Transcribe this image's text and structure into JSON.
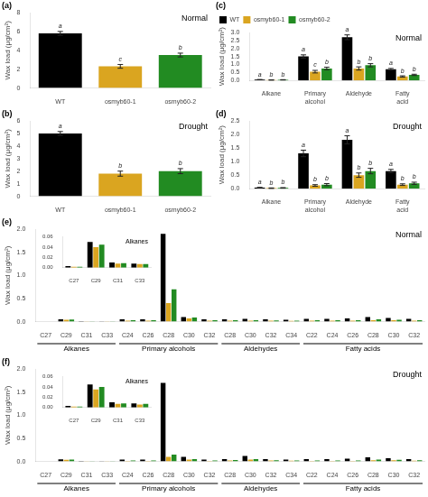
{
  "chart_data": [
    {
      "type": "bar",
      "title": "Normal",
      "annotations": [
        "(a)"
      ],
      "ylabel": "Wax load (μg/cm²)",
      "categories": [
        "WT",
        "osmyb60-1",
        "osmyb60-2"
      ],
      "values": [
        5.8,
        2.3,
        3.5
      ],
      "errors": [
        0.2,
        0.2,
        0.2
      ],
      "letters": [
        "a",
        "c",
        "b"
      ],
      "colors": [
        "#000000",
        "#DAA520",
        "#228B22"
      ],
      "ylim": [
        0,
        8
      ],
      "yticks": [
        0,
        2,
        4,
        6,
        8
      ],
      "grid": false
    },
    {
      "type": "bar",
      "title": "Drought",
      "annotations": [
        "(b)"
      ],
      "ylabel": "Wax load (μg/cm²)",
      "categories": [
        "WT",
        "osmyb60-1",
        "osmyb60-2"
      ],
      "values": [
        5.0,
        1.8,
        2.0
      ],
      "errors": [
        0.15,
        0.2,
        0.2
      ],
      "letters": [
        "a",
        "b",
        "b"
      ],
      "colors": [
        "#000000",
        "#DAA520",
        "#228B22"
      ],
      "ylim": [
        0,
        6
      ],
      "yticks": [
        0,
        1,
        2,
        3,
        4,
        5,
        6
      ],
      "grid": false
    },
    {
      "type": "bar",
      "title": "Normal",
      "annotations": [
        "(c)"
      ],
      "ylabel": "Wax load (μg/cm²)",
      "categories": [
        "Alkane",
        "Primary alcohol",
        "Aldehyde",
        "Fatty acid"
      ],
      "series": [
        {
          "name": "WT",
          "color": "#000000",
          "values": [
            0.05,
            1.5,
            2.7,
            0.7
          ],
          "errors": [
            0.01,
            0.1,
            0.15,
            0.05
          ],
          "letters": [
            "a",
            "a",
            "a",
            "a"
          ]
        },
        {
          "name": "osmyb60-1",
          "color": "#DAA520",
          "values": [
            0.03,
            0.55,
            0.75,
            0.25
          ],
          "errors": [
            0.01,
            0.08,
            0.1,
            0.04
          ],
          "letters": [
            "b",
            "c",
            "b",
            "b"
          ]
        },
        {
          "name": "osmyb60-2",
          "color": "#228B22",
          "values": [
            0.04,
            0.75,
            0.95,
            0.35
          ],
          "errors": [
            0.01,
            0.08,
            0.1,
            0.04
          ],
          "letters": [
            "b",
            "b",
            "b",
            "b"
          ]
        }
      ],
      "ylim": [
        0,
        3.0
      ],
      "yticks": [
        {
          "value": 0,
          "label": "0.0"
        },
        0.5,
        {
          "value": 1,
          "label": "1.0"
        },
        1.5,
        {
          "value": 2,
          "label": "2.0"
        },
        2.5,
        {
          "value": 3,
          "label": "3.0"
        }
      ],
      "grid": false,
      "legend": "upper left"
    },
    {
      "type": "bar",
      "title": "Drought",
      "annotations": [
        "(d)"
      ],
      "ylabel": "Wax load (μg/cm²)",
      "categories": [
        "Alkane",
        "Primary alcohol",
        "Aldehyde",
        "Fatty acid"
      ],
      "series": [
        {
          "name": "WT",
          "color": "#000000",
          "values": [
            0.04,
            1.3,
            1.8,
            0.65
          ],
          "errors": [
            0.01,
            0.12,
            0.15,
            0.06
          ],
          "letters": [
            "a",
            "a",
            "a",
            "a"
          ]
        },
        {
          "name": "osmyb60-1",
          "color": "#DAA520",
          "values": [
            0.02,
            0.12,
            0.5,
            0.15
          ],
          "errors": [
            0.01,
            0.03,
            0.08,
            0.03
          ],
          "letters": [
            "b",
            "b",
            "b",
            "b"
          ]
        },
        {
          "name": "osmyb60-2",
          "color": "#228B22",
          "values": [
            0.03,
            0.15,
            0.65,
            0.2
          ],
          "errors": [
            0.01,
            0.04,
            0.1,
            0.04
          ],
          "letters": [
            "b",
            "b",
            "b",
            "b"
          ]
        }
      ],
      "ylim": [
        0,
        2.5
      ],
      "yticks": [
        {
          "value": 0,
          "label": "0.0"
        },
        0.5,
        {
          "value": 1,
          "label": "1.0"
        },
        1.5,
        {
          "value": 2,
          "label": "2.0"
        },
        2.5
      ],
      "grid": false
    },
    {
      "type": "bar",
      "title": "Normal",
      "annotations": [
        "(e)"
      ],
      "ylabel": "Wax load (μg/cm²)",
      "category_groups": [
        {
          "label": "Alkanes",
          "categories": [
            "C27",
            "C29",
            "C31",
            "C33"
          ]
        },
        {
          "label": "Primary alcohols",
          "categories": [
            "C24",
            "C26",
            "C28",
            "C30",
            "C32"
          ]
        },
        {
          "label": "Aldehydes",
          "categories": [
            "C28",
            "C30",
            "C32",
            "C34"
          ]
        },
        {
          "label": "Fatty acids",
          "categories": [
            "C22",
            "C24",
            "C26",
            "C28",
            "C30",
            "C32"
          ]
        }
      ],
      "series": [
        {
          "name": "WT",
          "color": "#000000",
          "values": [
            0.003,
            0.05,
            0.01,
            0.008,
            0.05,
            0.05,
            1.9,
            0.1,
            0.05,
            0.05,
            0.06,
            0.05,
            0.04,
            0.06,
            0.06,
            0.07,
            0.1,
            0.08,
            0.06
          ]
        },
        {
          "name": "osmyb60-1",
          "color": "#DAA520",
          "values": [
            0.002,
            0.04,
            0.008,
            0.007,
            0.02,
            0.02,
            0.4,
            0.07,
            0.02,
            0.02,
            0.02,
            0.02,
            0.015,
            0.02,
            0.02,
            0.02,
            0.03,
            0.03,
            0.02
          ]
        },
        {
          "name": "osmyb60-2",
          "color": "#228B22",
          "values": [
            0.002,
            0.045,
            0.009,
            0.007,
            0.03,
            0.03,
            0.7,
            0.09,
            0.03,
            0.03,
            0.03,
            0.025,
            0.02,
            0.03,
            0.03,
            0.03,
            0.05,
            0.04,
            0.03
          ]
        }
      ],
      "ylim": [
        0,
        2.0
      ],
      "yticks": [
        {
          "value": 0,
          "label": "0.0"
        },
        0.5,
        {
          "value": 1,
          "label": "1.0"
        },
        1.5,
        {
          "value": 2,
          "label": "2.0"
        }
      ],
      "grid": false,
      "inset": {
        "type": "bar",
        "title": "Alkanes",
        "categories": [
          "C27",
          "C29",
          "C31",
          "C33"
        ],
        "series": [
          {
            "name": "WT",
            "color": "#000000",
            "values": [
              0.003,
              0.05,
              0.01,
              0.008
            ]
          },
          {
            "name": "osmyb60-1",
            "color": "#DAA520",
            "values": [
              0.002,
              0.04,
              0.008,
              0.007
            ]
          },
          {
            "name": "osmyb60-2",
            "color": "#228B22",
            "values": [
              0.002,
              0.045,
              0.009,
              0.007
            ]
          }
        ],
        "ylim": [
          0,
          0.06
        ],
        "yticks": [
          {
            "value": 0,
            "label": "0.00"
          },
          0.02,
          0.04,
          0.06
        ],
        "grid": false
      }
    },
    {
      "type": "bar",
      "title": "Drought",
      "annotations": [
        "(f)"
      ],
      "ylabel": "Wax load (μg/cm²)",
      "category_groups": [
        {
          "label": "Alkanes",
          "categories": [
            "C27",
            "C29",
            "C31",
            "C33"
          ]
        },
        {
          "label": "Primary alcohols",
          "categories": [
            "C24",
            "C26",
            "C28",
            "C30",
            "C32"
          ]
        },
        {
          "label": "Aldehydes",
          "categories": [
            "C28",
            "C30",
            "C32",
            "C34"
          ]
        },
        {
          "label": "Fatty acids",
          "categories": [
            "C22",
            "C24",
            "C26",
            "C28",
            "C30",
            "C32"
          ]
        }
      ],
      "series": [
        {
          "name": "WT",
          "color": "#000000",
          "values": [
            0.003,
            0.045,
            0.01,
            0.008,
            0.04,
            0.04,
            1.7,
            0.1,
            0.04,
            0.05,
            0.12,
            0.05,
            0.04,
            0.05,
            0.05,
            0.06,
            0.09,
            0.07,
            0.05
          ]
        },
        {
          "name": "osmyb60-1",
          "color": "#DAA520",
          "values": [
            0.002,
            0.035,
            0.007,
            0.006,
            0.01,
            0.01,
            0.1,
            0.04,
            0.01,
            0.02,
            0.04,
            0.02,
            0.015,
            0.01,
            0.01,
            0.01,
            0.025,
            0.025,
            0.015
          ]
        },
        {
          "name": "osmyb60-2",
          "color": "#228B22",
          "values": [
            0.002,
            0.04,
            0.008,
            0.007,
            0.02,
            0.02,
            0.15,
            0.05,
            0.02,
            0.03,
            0.05,
            0.025,
            0.02,
            0.02,
            0.02,
            0.02,
            0.04,
            0.035,
            0.025
          ]
        }
      ],
      "ylim": [
        0,
        2.0
      ],
      "yticks": [
        {
          "value": 0,
          "label": "0.0"
        },
        0.5,
        {
          "value": 1,
          "label": "1.0"
        },
        1.5,
        {
          "value": 2,
          "label": "2.0"
        }
      ],
      "grid": false,
      "inset": {
        "type": "bar",
        "title": "Alkanes",
        "categories": [
          "C27",
          "C29",
          "C31",
          "C33"
        ],
        "series": [
          {
            "name": "WT",
            "color": "#000000",
            "values": [
              0.003,
              0.045,
              0.01,
              0.008
            ]
          },
          {
            "name": "osmyb60-1",
            "color": "#DAA520",
            "values": [
              0.002,
              0.035,
              0.007,
              0.006
            ]
          },
          {
            "name": "osmyb60-2",
            "color": "#228B22",
            "values": [
              0.002,
              0.04,
              0.008,
              0.007
            ]
          }
        ],
        "ylim": [
          0,
          0.06
        ],
        "yticks": [
          {
            "value": 0,
            "label": "0.00"
          },
          0.02,
          0.04,
          0.06
        ],
        "grid": false
      }
    }
  ]
}
